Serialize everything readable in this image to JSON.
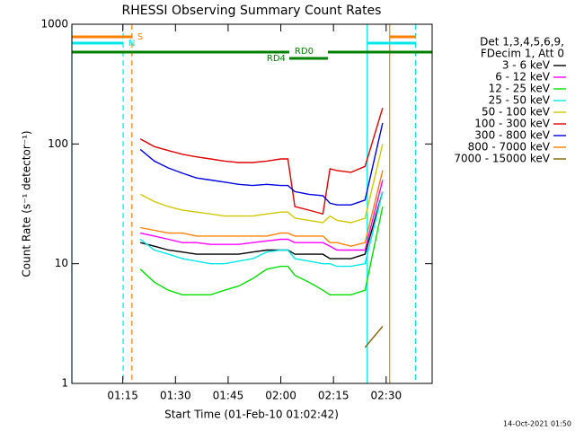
{
  "chart_data": {
    "type": "line",
    "title": "RHESSI Observing Summary Count Rates",
    "xlabel": "Start Time (01-Feb-10 01:02:42)",
    "ylabel": "Count Rate (s⁻¹ detector⁻¹)",
    "footer": "14-Oct-2021 01:50",
    "legend_title": [
      "Det 1,3,4,5,6,9,",
      "FDecim 1, Att 0"
    ],
    "legend": "right",
    "ylog": true,
    "xlim": [
      60.5,
      163.1
    ],
    "xticks": [
      {
        "value": 75,
        "label": "01:15"
      },
      {
        "value": 90,
        "label": "01:30"
      },
      {
        "value": 105,
        "label": "01:45"
      },
      {
        "value": 120,
        "label": "02:00"
      },
      {
        "value": 135,
        "label": "02:15"
      },
      {
        "value": 150,
        "label": "02:30"
      }
    ],
    "ylim": [
      1,
      1000
    ],
    "yticks": [
      1,
      10,
      100,
      1000
    ],
    "x": [
      80,
      84,
      88,
      92,
      96,
      100,
      104,
      108,
      112,
      116,
      120,
      122,
      124,
      128,
      132,
      134,
      136,
      140,
      144,
      149
    ],
    "series": [
      {
        "name": "3 - 6 keV",
        "color": "#000000",
        "values": [
          15,
          14,
          13,
          12.5,
          12,
          12,
          12,
          12,
          12.5,
          13,
          13,
          13,
          12,
          12,
          12,
          11,
          11,
          11,
          12,
          40
        ]
      },
      {
        "name": "6 - 12 keV",
        "color": "#ff00ff",
        "values": [
          18,
          17,
          16,
          15,
          15,
          14.5,
          14.5,
          14.5,
          15,
          15.5,
          16,
          16,
          15,
          15,
          15,
          14,
          13,
          13,
          13,
          50
        ]
      },
      {
        "name": "12 - 25 keV",
        "color": "#00e000",
        "values": [
          9,
          7,
          6,
          5.5,
          5.5,
          5.5,
          6,
          6.5,
          7.5,
          9,
          9.5,
          9.5,
          8,
          7,
          6,
          5.5,
          5.5,
          5.5,
          6,
          30
        ]
      },
      {
        "name": "25 - 50 keV",
        "color": "#00e8e8",
        "values": [
          16,
          13,
          12,
          11,
          10.5,
          10,
          10,
          10.5,
          11,
          12.5,
          13,
          13,
          11,
          10.5,
          10,
          10,
          9.5,
          9.5,
          10,
          40
        ]
      },
      {
        "name": "50 - 100 keV",
        "color": "#d0c800",
        "values": [
          38,
          33,
          30,
          28,
          27,
          26,
          25,
          25,
          25,
          26,
          27,
          27,
          24,
          23,
          22,
          25,
          23,
          22,
          24,
          100
        ]
      },
      {
        "name": "100 - 300 keV",
        "color": "#e00000",
        "values": [
          110,
          95,
          88,
          82,
          78,
          75,
          72,
          70,
          70,
          72,
          75,
          75,
          30,
          28,
          26,
          62,
          60,
          58,
          65,
          200
        ]
      },
      {
        "name": "300 - 800 keV",
        "color": "#0000e0",
        "values": [
          90,
          72,
          63,
          57,
          52,
          50,
          48,
          46,
          45,
          46,
          45,
          45,
          40,
          38,
          37,
          32,
          31,
          31,
          34,
          150
        ]
      },
      {
        "name": "800 - 7000 keV",
        "color": "#ff8000",
        "values": [
          20,
          19,
          18,
          18,
          17,
          17,
          17,
          17,
          17,
          17,
          18,
          18,
          17,
          17,
          17,
          15,
          15,
          14,
          15,
          60
        ]
      },
      {
        "name": "7000 - 15000 keV",
        "color": "#806000",
        "values": [
          null,
          null,
          null,
          null,
          null,
          null,
          null,
          null,
          null,
          null,
          null,
          null,
          null,
          null,
          null,
          null,
          null,
          null,
          2,
          3
        ]
      }
    ],
    "flags": [
      {
        "label": "S",
        "color": "#ff8000",
        "label_side": "after",
        "segments": [
          [
            60.5,
            77.6
          ],
          [
            151.0,
            158.4
          ]
        ]
      },
      {
        "label": "N",
        "color": "#00e8e8",
        "label_side": "after",
        "segments": [
          [
            60.5,
            75.1
          ],
          [
            144.6,
            158.4
          ]
        ]
      },
      {
        "label": "RD0",
        "color": "#008000",
        "label_side": "after",
        "segments": [
          [
            60.5,
            122.4
          ],
          [
            133.4,
            163.1
          ]
        ]
      },
      {
        "label": "RD4",
        "color": "#008000",
        "label_side": "before",
        "segments": [
          [
            122.4,
            133.4
          ]
        ]
      }
    ],
    "vlines": [
      {
        "x": 60.5,
        "color": "#00e8e8",
        "dashed": false
      },
      {
        "x": 75.1,
        "color": "#00e8e8",
        "dashed": true
      },
      {
        "x": 77.6,
        "color": "#ff8000",
        "dashed": true
      },
      {
        "x": 144.6,
        "color": "#00e8e8",
        "dashed": false
      },
      {
        "x": 151.0,
        "color": "#ff8000",
        "dashed": false
      },
      {
        "x": 158.4,
        "color": "#00e8e8",
        "dashed": true
      }
    ]
  }
}
